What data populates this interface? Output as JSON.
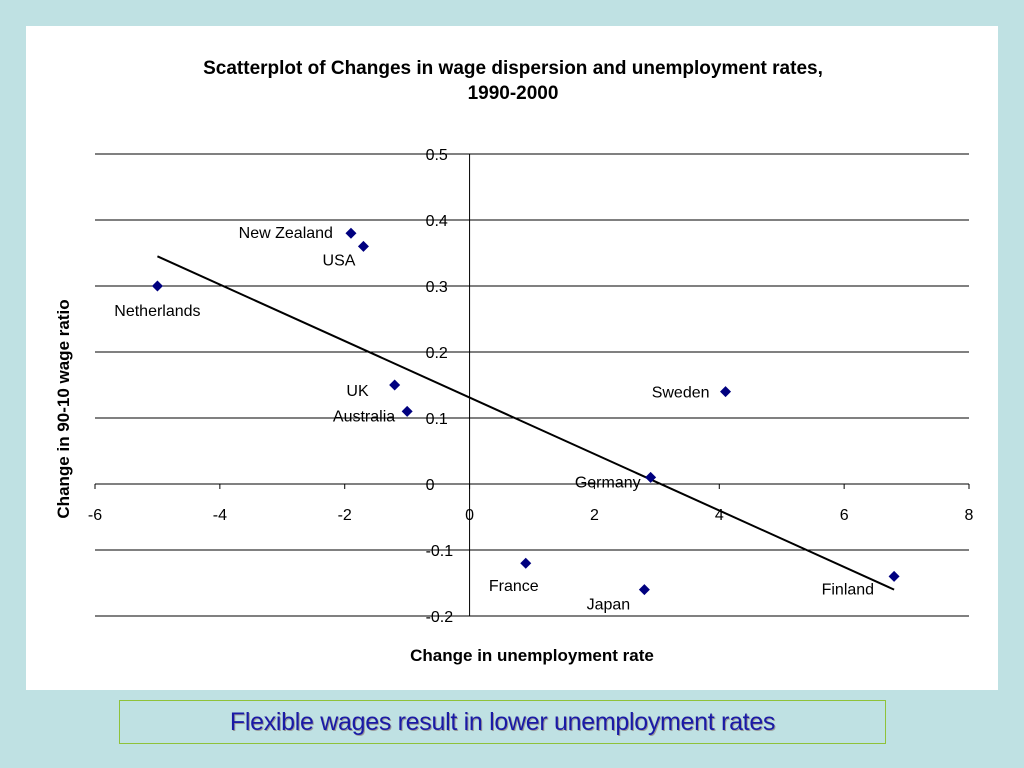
{
  "chart_data": {
    "type": "scatter",
    "title": [
      "Scatterplot of Changes in wage dispersion and unemployment rates,",
      "1990-2000"
    ],
    "xlabel": "Change in unemployment rate",
    "ylabel": "Change in 90-10 wage ratio",
    "xlim": [
      -6,
      8
    ],
    "ylim": [
      -0.2,
      0.5
    ],
    "x_ticks": [
      "-6",
      "-4",
      "-2",
      "0",
      "2",
      "4",
      "6",
      "8"
    ],
    "y_ticks": [
      "-0.2",
      "-0.1",
      "0",
      "0.1",
      "0.2",
      "0.3",
      "0.4",
      "0.5"
    ],
    "grid": "horizontal",
    "marker_color": "#00007f",
    "points": [
      {
        "label": "Netherlands",
        "x": -5.0,
        "y": 0.3
      },
      {
        "label": "New Zealand",
        "x": -1.9,
        "y": 0.38
      },
      {
        "label": "USA",
        "x": -1.7,
        "y": 0.36
      },
      {
        "label": "UK",
        "x": -1.2,
        "y": 0.15
      },
      {
        "label": "Australia",
        "x": -1.0,
        "y": 0.11
      },
      {
        "label": "France",
        "x": 0.9,
        "y": -0.12
      },
      {
        "label": "Japan",
        "x": 2.8,
        "y": -0.16
      },
      {
        "label": "Germany",
        "x": 2.9,
        "y": 0.01
      },
      {
        "label": "Sweden",
        "x": 4.1,
        "y": 0.14
      },
      {
        "label": "Finland",
        "x": 6.8,
        "y": -0.14
      }
    ],
    "trendline": {
      "x": [
        -5.0,
        6.8
      ],
      "y": [
        0.345,
        -0.16
      ]
    }
  },
  "caption": "Flexible wages result in lower unemployment rates"
}
